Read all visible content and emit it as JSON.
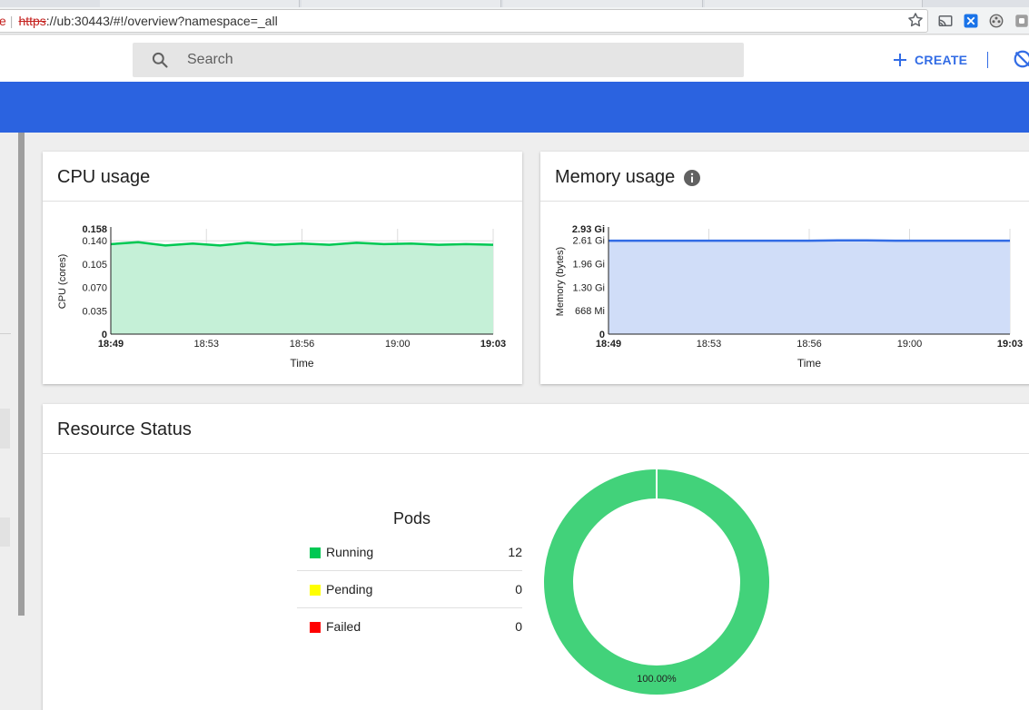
{
  "browser": {
    "url_prefix_fragment": "e",
    "url_scheme": "https",
    "url_rest": "://ub:30443/#!/overview?namespace=_all"
  },
  "header": {
    "search_placeholder": "Search",
    "create_label": "CREATE"
  },
  "colors": {
    "accent": "#326ce5",
    "banner": "#2b63e0",
    "cpu_line": "#00c853",
    "cpu_fill": "#c5f0d7",
    "mem_line": "#326ce5",
    "mem_fill": "#d0ddf8",
    "running": "#00c853",
    "pending": "#ffff00",
    "failed": "#ff0000",
    "donut": "#42d27a"
  },
  "cpu_card": {
    "title": "CPU usage"
  },
  "memory_card": {
    "title": "Memory usage",
    "info_icon": "info-icon"
  },
  "resource_card": {
    "title": "Resource Status",
    "pods_title": "Pods",
    "legend": [
      {
        "label": "Running",
        "count": "12"
      },
      {
        "label": "Pending",
        "count": "0"
      },
      {
        "label": "Failed",
        "count": "0"
      }
    ],
    "donut_label": "100.00%"
  },
  "chart_data": [
    {
      "type": "area",
      "ylabel": "CPU (cores)",
      "xlabel": "Time",
      "x_ticks": [
        "18:49",
        "18:53",
        "18:56",
        "19:00",
        "19:03"
      ],
      "y_ticks": [
        "0",
        "0.035",
        "0.070",
        "0.105",
        "0.140",
        "0.158"
      ],
      "ylim": [
        0,
        0.158
      ],
      "grid": true,
      "series": [
        {
          "values": [
            0.135,
            0.138,
            0.133,
            0.136,
            0.133,
            0.137,
            0.134,
            0.136,
            0.134,
            0.137,
            0.135,
            0.136,
            0.134,
            0.135,
            0.134
          ]
        }
      ]
    },
    {
      "type": "area",
      "ylabel": "Memory (bytes)",
      "xlabel": "Time",
      "x_ticks": [
        "18:49",
        "18:53",
        "18:56",
        "19:00",
        "19:03"
      ],
      "y_ticks": [
        "0",
        "668 Mi",
        "1.30 Gi",
        "1.96 Gi",
        "2.61 Gi",
        "2.93 Gi"
      ],
      "ylim": [
        0,
        2.93
      ],
      "grid": true,
      "series": [
        {
          "values": [
            2.6,
            2.6,
            2.6,
            2.6,
            2.6,
            2.6,
            2.6,
            2.6,
            2.61,
            2.61,
            2.6,
            2.6,
            2.6,
            2.6,
            2.6
          ]
        }
      ]
    },
    {
      "type": "pie",
      "categories": [
        "Running",
        "Pending",
        "Failed"
      ],
      "values": [
        12,
        0,
        0
      ],
      "labels": [
        "100.00%"
      ]
    }
  ]
}
